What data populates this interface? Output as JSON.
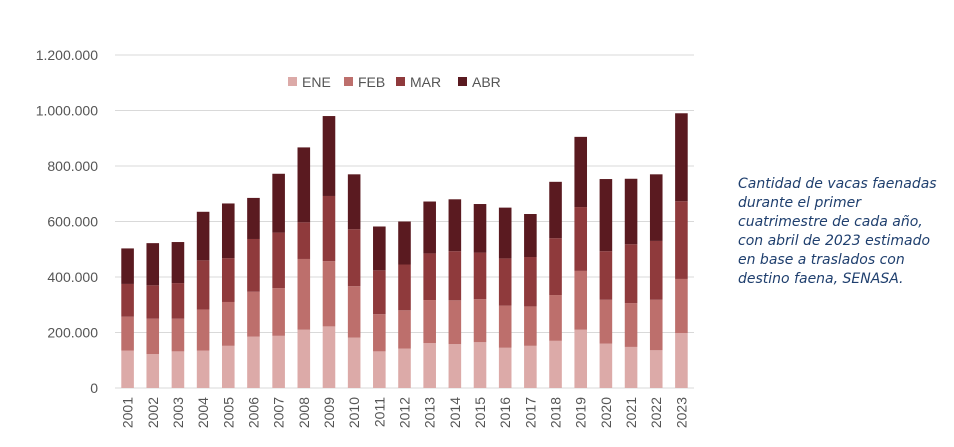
{
  "chart_data": {
    "type": "bar",
    "stacked": true,
    "categories": [
      "2001",
      "2002",
      "2003",
      "2004",
      "2005",
      "2006",
      "2007",
      "2008",
      "2009",
      "2010",
      "2011",
      "2012",
      "2013",
      "2014",
      "2015",
      "2016",
      "2017",
      "2018",
      "2019",
      "2020",
      "2021",
      "2022",
      "2023"
    ],
    "series": [
      {
        "name": "ENE",
        "color": "#dcaaa8",
        "values": [
          135000,
          122000,
          132000,
          135000,
          152000,
          185000,
          188000,
          210000,
          222000,
          182000,
          132000,
          142000,
          162000,
          158000,
          165000,
          145000,
          152000,
          170000,
          210000,
          160000,
          148000,
          136000,
          198000
        ]
      },
      {
        "name": "FEB",
        "color": "#bd6f6c",
        "values": [
          122000,
          128000,
          118000,
          148000,
          158000,
          162000,
          172000,
          255000,
          235000,
          185000,
          134000,
          138000,
          155000,
          158000,
          155000,
          152000,
          142000,
          165000,
          212000,
          158000,
          158000,
          182000,
          195000
        ]
      },
      {
        "name": "MAR",
        "color": "#8f3a3c",
        "values": [
          118000,
          120000,
          128000,
          177000,
          158000,
          190000,
          200000,
          132000,
          235000,
          205000,
          158000,
          165000,
          168000,
          177000,
          168000,
          170000,
          178000,
          205000,
          230000,
          175000,
          212000,
          212000,
          280000
        ]
      },
      {
        "name": "ABR",
        "color": "#5a1a20",
        "values": [
          128000,
          152000,
          148000,
          175000,
          197000,
          148000,
          212000,
          270000,
          288000,
          198000,
          158000,
          155000,
          187000,
          187000,
          175000,
          183000,
          155000,
          203000,
          253000,
          260000,
          236000,
          240000,
          317000
        ]
      }
    ],
    "yticks": [
      "0",
      "200.000",
      "400.000",
      "600.000",
      "800.000",
      "1.000.000",
      "1.200.000"
    ],
    "ylim": [
      0,
      1200000
    ],
    "grid": true,
    "legend": "top-center"
  },
  "caption": "Cantidad de vacas faenadas durante el primer cuatrimestre de cada año, con abril de 2023 estimado en base a traslados con destino faena, SENASA."
}
